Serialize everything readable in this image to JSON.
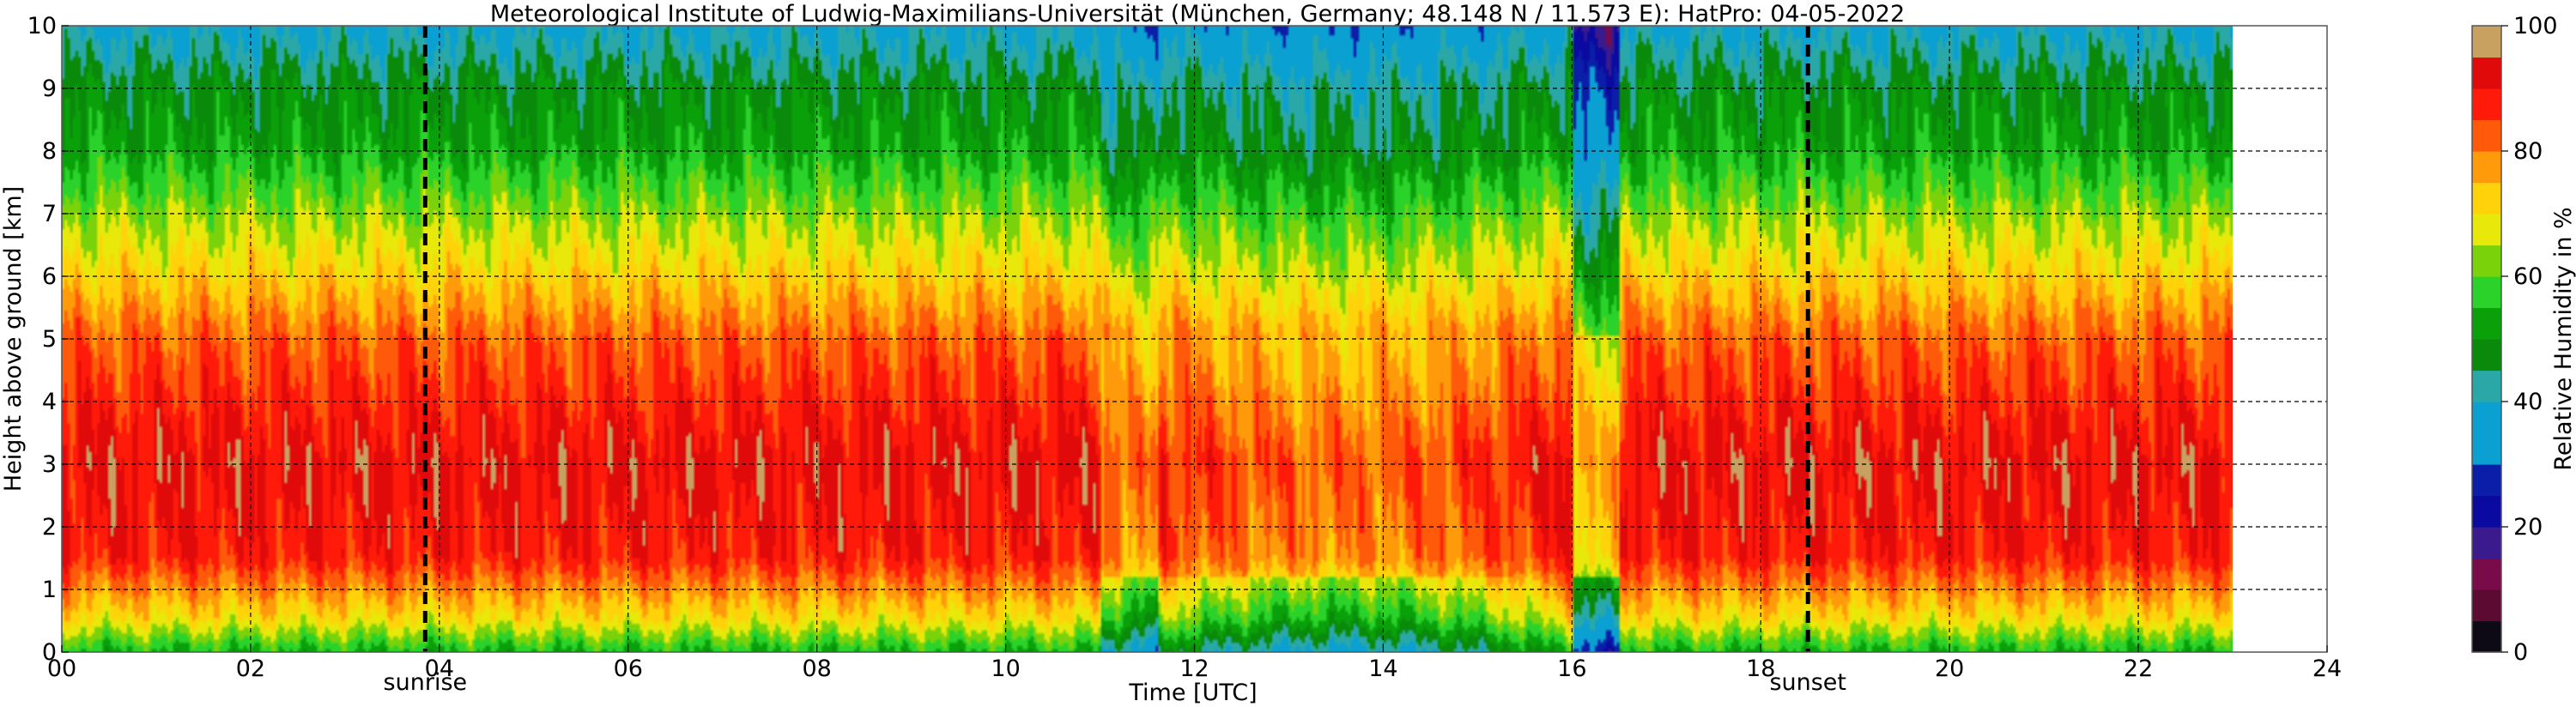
{
  "chart_data": {
    "type": "heatmap",
    "title": "Meteorological Institute of Ludwig-Maximilians-Universität (München, Germany; 48.148 N / 11.573 E):    HatPro: 04-05-2022",
    "xlabel": "Time [UTC]",
    "ylabel": "Height above ground [km]",
    "xlim": [
      0,
      24
    ],
    "ylim": [
      0,
      10
    ],
    "data_end_hour": 23,
    "x_ticks": [
      0,
      2,
      4,
      6,
      8,
      10,
      12,
      14,
      16,
      18,
      20,
      22,
      24
    ],
    "x_tick_labels": [
      "00",
      "02",
      "04",
      "06",
      "08",
      "10",
      "12",
      "14",
      "16",
      "18",
      "20",
      "22",
      "24"
    ],
    "y_ticks": [
      0,
      1,
      2,
      3,
      4,
      5,
      6,
      7,
      8,
      9,
      10
    ],
    "y_tick_labels": [
      "0",
      "1",
      "2",
      "3",
      "4",
      "5",
      "6",
      "7",
      "8",
      "9",
      "10"
    ],
    "grid": true,
    "annotations": [
      {
        "label": "sunrise",
        "x": 3.85
      },
      {
        "label": "sunset",
        "x": 18.5
      }
    ],
    "colorbar": {
      "label": "Relative Humidity in %",
      "ticks": [
        0,
        20,
        40,
        60,
        80,
        100
      ],
      "tick_labels": [
        "0",
        "20",
        "40",
        "60",
        "80",
        "100"
      ],
      "colors": [
        "#0d0a16",
        "#5c0a32",
        "#7a0b4a",
        "#3a1a8c",
        "#0a0aa0",
        "#0a1ea8",
        "#0aa0d2",
        "#0aa0d2",
        "#2aa8a8",
        "#0a8a0a",
        "#0aa00a",
        "#2ad22a",
        "#7ad20a",
        "#e8e80a",
        "#ffd20a",
        "#ff9a0a",
        "#ff5a0a",
        "#ff1a0a",
        "#e00a0a",
        "#c8a060"
      ]
    },
    "profile_summary": [
      {
        "height_km": 0.0,
        "rh_percent": 55
      },
      {
        "height_km": 0.5,
        "rh_percent": 70
      },
      {
        "height_km": 1.5,
        "rh_percent": 88
      },
      {
        "height_km": 3.0,
        "rh_percent": 92
      },
      {
        "height_km": 5.0,
        "rh_percent": 82
      },
      {
        "height_km": 6.0,
        "rh_percent": 72
      },
      {
        "height_km": 7.0,
        "rh_percent": 63
      },
      {
        "height_km": 8.0,
        "rh_percent": 53
      },
      {
        "height_km": 9.0,
        "rh_percent": 48
      },
      {
        "height_km": 10.0,
        "rh_percent": 38
      }
    ]
  }
}
